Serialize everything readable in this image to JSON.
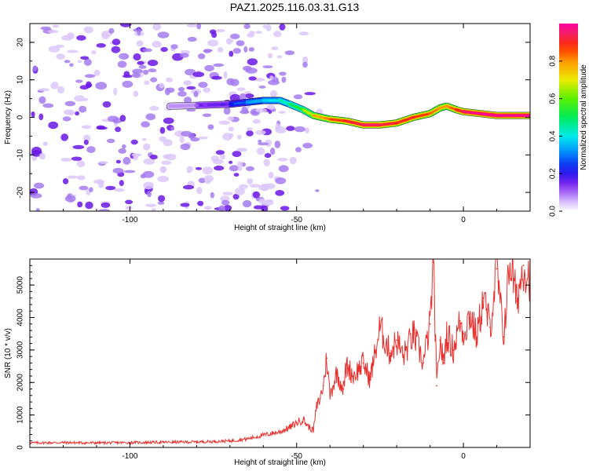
{
  "title": "PAZ1.2025.116.03.31.G13",
  "colors": {
    "snr_line": "#e8312e",
    "ridge_core": "#e0245e",
    "noise_light": "#dcc8fa",
    "noise_mid": "#a47bf0",
    "noise_dark": "#6a17e6"
  },
  "chart_data": [
    {
      "type": "heatmap",
      "xlabel": "Height of straight line (km)",
      "ylabel": "Frequency (Hz)",
      "xlim": [
        -130,
        20
      ],
      "ylim": [
        -25,
        25
      ],
      "xticks": [
        -100,
        -50,
        0
      ],
      "xtick_labels": [
        "-100",
        "-50",
        "0"
      ],
      "yticks": [
        -20,
        -10,
        0,
        10,
        20
      ],
      "ytick_labels": [
        "-20",
        "-10",
        "0",
        "10",
        "20"
      ],
      "grid": false,
      "colorbar": {
        "label": "Normalized spectral amplitude",
        "range": [
          0,
          1
        ],
        "ticks": [
          0.0,
          0.2,
          0.4,
          0.6,
          0.8
        ],
        "tick_labels": [
          "0.0",
          "0.2",
          "0.4",
          "0.6",
          "0.8"
        ],
        "colormap": "rainbow (white → violet → blue → cyan → green → yellow → orange → red → magenta)"
      },
      "ridge": {
        "x": [
          -88,
          -80,
          -70,
          -65,
          -60,
          -55,
          -52,
          -48,
          -45,
          -40,
          -35,
          -30,
          -25,
          -20,
          -15,
          -10,
          -7,
          -5,
          -2,
          0,
          5,
          10,
          15,
          20
        ],
        "frequency": [
          3.0,
          3.2,
          3.5,
          4.0,
          4.5,
          4.5,
          3.5,
          2.0,
          0.5,
          -0.5,
          -1.0,
          -2.0,
          -2.0,
          -1.5,
          0.0,
          1.0,
          2.5,
          3.0,
          2.0,
          1.5,
          1.0,
          0.5,
          0.5,
          0.5
        ],
        "amplitude": [
          0.05,
          0.1,
          0.2,
          0.3,
          0.35,
          0.4,
          0.45,
          0.55,
          0.7,
          0.8,
          0.85,
          0.9,
          0.9,
          0.85,
          0.85,
          0.8,
          0.75,
          0.75,
          0.85,
          0.9,
          0.95,
          0.95,
          0.95,
          0.95
        ]
      },
      "noise_region_x": [
        -130,
        -55
      ]
    },
    {
      "type": "line",
      "xlabel": "Height of straight line (km)",
      "ylabel": "SNR (10 * v/v)",
      "xlim": [
        -130,
        20
      ],
      "ylim": [
        0,
        5800
      ],
      "xticks": [
        -100,
        -50,
        0
      ],
      "xtick_labels": [
        "-100",
        "-50",
        "0"
      ],
      "yticks": [
        0,
        1000,
        2000,
        3000,
        4000,
        5000
      ],
      "ytick_labels": [
        "0",
        "1000",
        "2000",
        "3000",
        "4000",
        "5000"
      ],
      "grid": false,
      "series": [
        {
          "x": [
            -130,
            -120,
            -110,
            -100,
            -90,
            -80,
            -70,
            -65,
            -60,
            -55,
            -52,
            -50,
            -48,
            -47,
            -46,
            -45,
            -44,
            -43,
            -42,
            -41,
            -40,
            -38,
            -36,
            -35,
            -33,
            -30,
            -28,
            -25,
            -22,
            -20,
            -18,
            -15,
            -12,
            -10,
            -9,
            -8,
            -7,
            -6,
            -5,
            -3,
            -1,
            0,
            2,
            4,
            6,
            8,
            10,
            12,
            14,
            16,
            18,
            20
          ],
          "y": [
            140,
            150,
            140,
            150,
            160,
            170,
            200,
            260,
            380,
            480,
            620,
            760,
            870,
            700,
            600,
            520,
            1250,
            1500,
            1900,
            2750,
            1600,
            2300,
            1800,
            2550,
            2200,
            2600,
            2100,
            3700,
            2900,
            3300,
            2800,
            3500,
            2600,
            3800,
            5700,
            1900,
            3300,
            2600,
            3500,
            3000,
            3900,
            3500,
            4100,
            3400,
            4600,
            3700,
            5500,
            3400,
            5800,
            4500,
            5600,
            5200
          ]
        }
      ]
    }
  ]
}
